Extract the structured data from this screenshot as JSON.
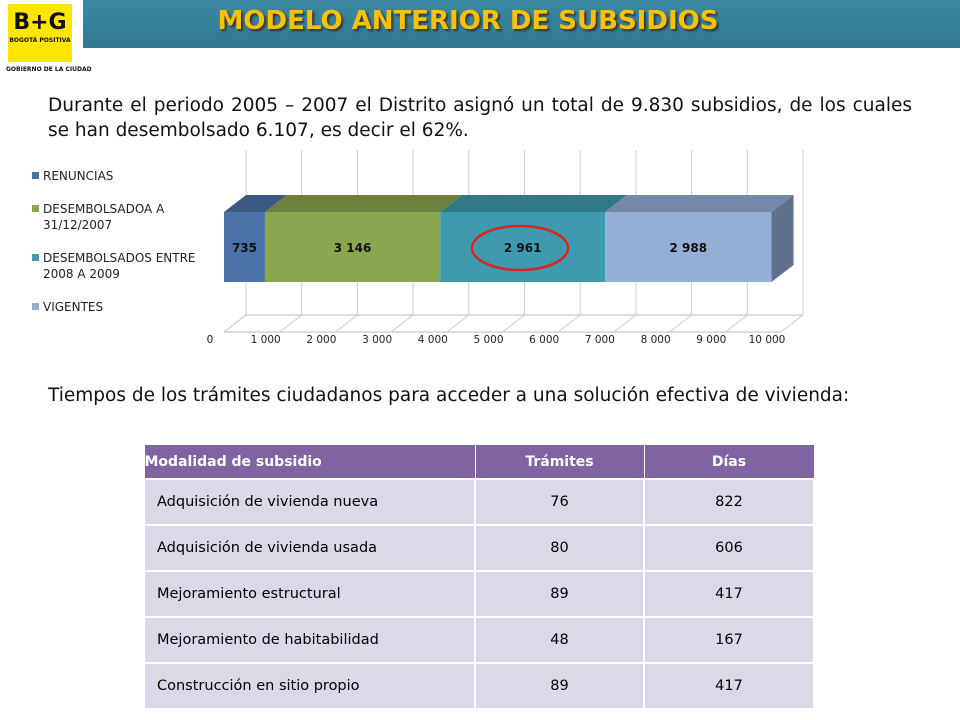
{
  "logo": {
    "mark": "B+G",
    "tagline": "BOGOTÁ POSITIVA",
    "caption": "GOBIERNO DE LA CIUDAD"
  },
  "header": {
    "title": "MODELO ANTERIOR DE SUBSIDIOS"
  },
  "paragraphs": [
    "Durante el periodo 2005 – 2007 el Distrito asignó un total de 9.830 subsidios, de los cuales se han desembolsado 6.107, es decir el 62%.",
    "Tiempos de los trámites ciudadanos para acceder a una solución efectiva de vivienda:"
  ],
  "chart_data": {
    "type": "stacked-bar-3d",
    "orientation": "horizontal",
    "series": [
      {
        "name": "RENUNCIAS",
        "color": "#4a72a8",
        "values": [
          735
        ],
        "value_labels": [
          "735"
        ]
      },
      {
        "name": "DESEMBOLSADOA A 31/12/2007",
        "color": "#8aa64e",
        "values": [
          3146
        ],
        "value_labels": [
          "3 146"
        ]
      },
      {
        "name": "DESEMBOLSADOS ENTRE 2008 A 2009",
        "color": "#3f9ab0",
        "values": [
          2961
        ],
        "value_labels": [
          "2 961"
        ]
      },
      {
        "name": "VIGENTES",
        "color": "#95aed6",
        "values": [
          2988
        ],
        "value_labels": [
          "2 988"
        ]
      }
    ],
    "xlim": [
      0,
      10000
    ],
    "xticks": [
      0,
      {
        "value": 1000,
        "label": "1 000"
      },
      {
        "value": 2000,
        "label": "2 000"
      },
      {
        "value": 3000,
        "label": "3 000"
      },
      {
        "value": 4000,
        "label": "4 000"
      },
      {
        "value": 5000,
        "label": "5 000"
      },
      {
        "value": 6000,
        "label": "6 000"
      },
      {
        "value": 7000,
        "label": "7 000"
      },
      {
        "value": 8000,
        "label": "8 000"
      },
      {
        "value": 9000,
        "label": "9 000"
      },
      {
        "value": 10000,
        "label": "10 000"
      }
    ],
    "legend": "left"
  },
  "table": {
    "header": [
      "Modalidad de subsidio",
      "Trámites",
      "Días"
    ],
    "rows": [
      [
        "Adquisición de vivienda nueva",
        76,
        822
      ],
      [
        "Adquisición de vivienda usada",
        80,
        606
      ],
      [
        "Mejoramiento estructural",
        89,
        417
      ],
      [
        "Mejoramiento de habitabilidad",
        48,
        167
      ],
      [
        "Construcción en sitio propio",
        89,
        417
      ]
    ]
  }
}
